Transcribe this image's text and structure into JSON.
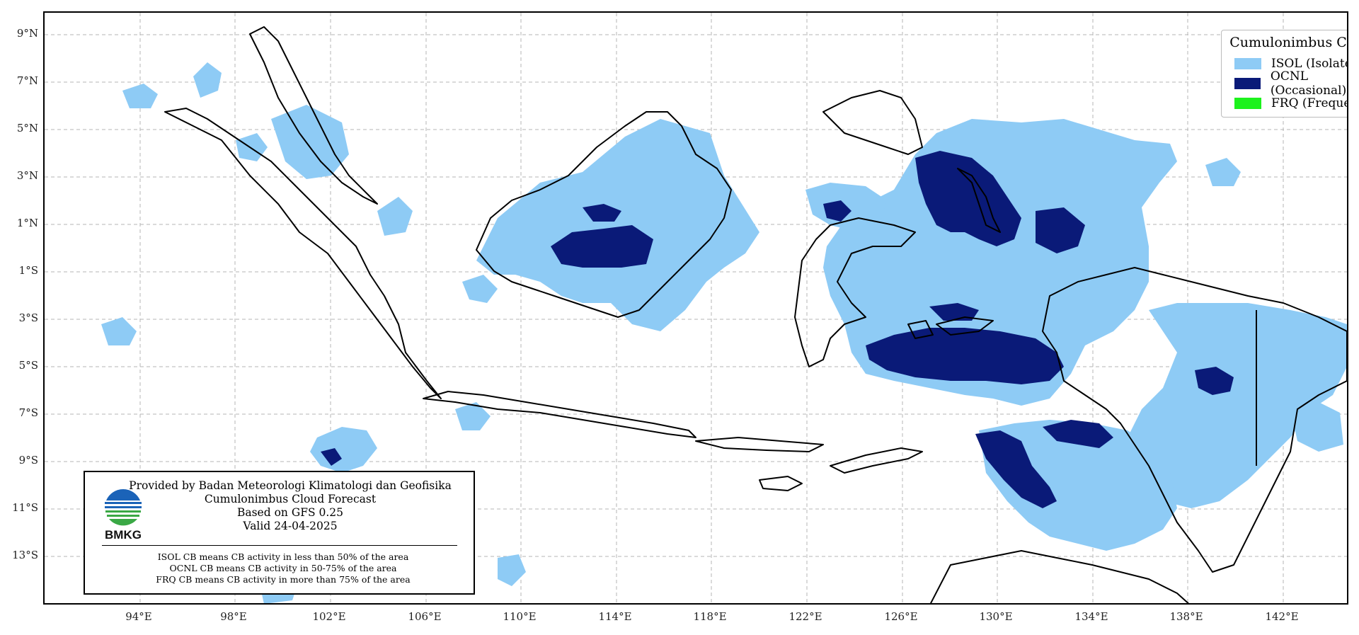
{
  "map": {
    "lat_labels": [
      "9°N",
      "7°N",
      "5°N",
      "3°N",
      "1°N",
      "1°S",
      "3°S",
      "5°S",
      "7°S",
      "9°S",
      "11°S",
      "13°S"
    ],
    "lon_labels": [
      "94°E",
      "98°E",
      "102°E",
      "106°E",
      "110°E",
      "114°E",
      "118°E",
      "122°E",
      "126°E",
      "130°E",
      "134°E",
      "138°E",
      "142°E"
    ],
    "colors": {
      "isol": "#8ecbf5",
      "ocnl": "#0a1a78",
      "frq": "#1df21d",
      "coast": "#000000",
      "grid": "#b5b5b5"
    }
  },
  "legend": {
    "title": "Cumulonimbus Cloud",
    "items": [
      {
        "label": "ISOL (Isolated)",
        "color": "#8ecbf5"
      },
      {
        "label": "OCNL (Occasional)",
        "color": "#0a1a78"
      },
      {
        "label": "FRQ (Frequent)",
        "color": "#1df21d"
      }
    ]
  },
  "info": {
    "line1": "Provided by Badan Meteorologi Klimatologi dan Geofisika",
    "line2": "Cumulonimbus Cloud Forecast",
    "line3": "Based on GFS 0.25",
    "line4": "Valid 24-04-2025",
    "logo_text": "BMKG",
    "note1": "ISOL CB means CB activity in less than 50% of the area",
    "note2": "OCNL CB means CB activity in 50-75% of the area",
    "note3": "FRQ CB means CB activity in more than 75% of the area"
  }
}
